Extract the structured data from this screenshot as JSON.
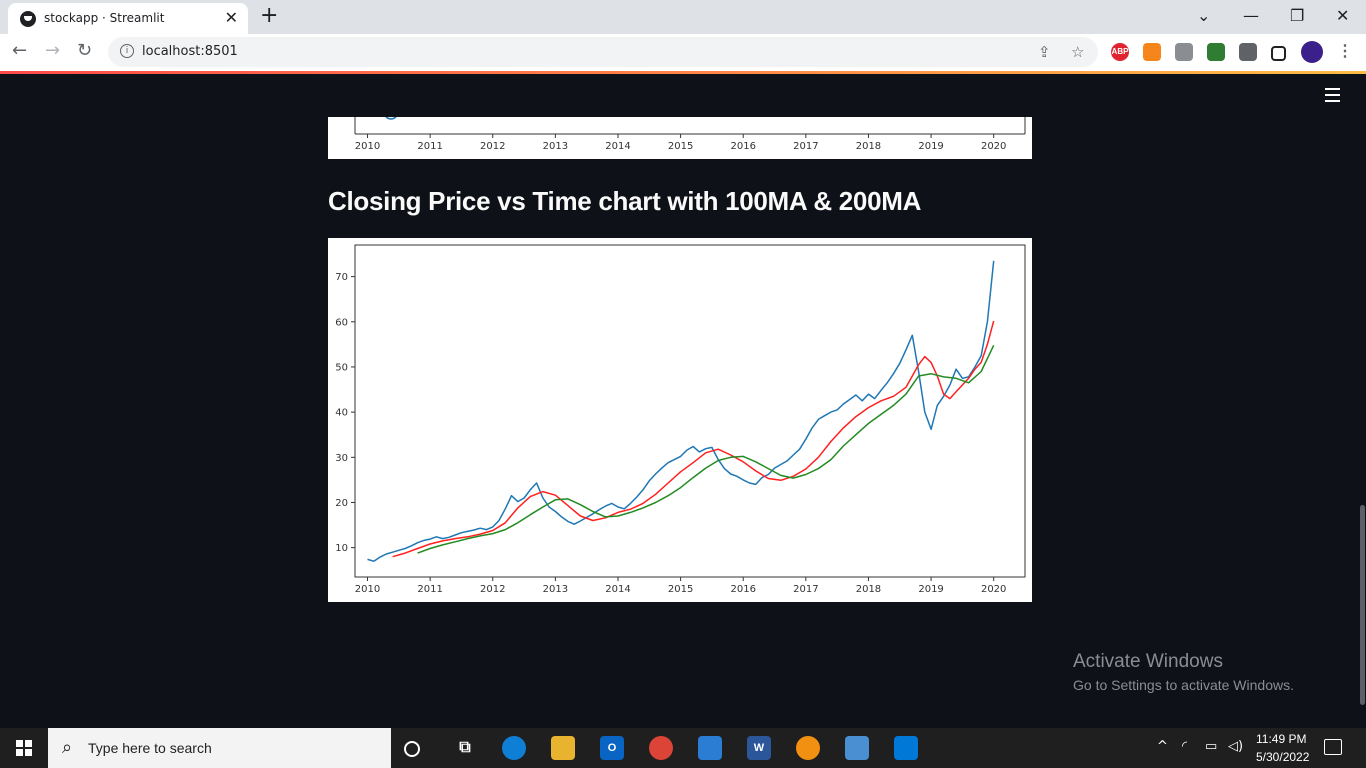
{
  "browser": {
    "tab_title": "stockapp · Streamlit",
    "tab_close": "✕",
    "new_tab": "+",
    "url": "localhost:8501",
    "win_min": "—",
    "win_restore": "❐",
    "win_close": "✕",
    "tab_search": "⌄",
    "ext_abp": "ABP"
  },
  "app": {
    "heading": "Closing Price vs Time chart with 100MA & 200MA",
    "accent": "#ff4b4b",
    "background": "#0e1117"
  },
  "top_chart_partial": {
    "xticks": [
      "2010",
      "2011",
      "2012",
      "2013",
      "2014",
      "2015",
      "2016",
      "2017",
      "2018",
      "2019",
      "2020"
    ]
  },
  "chart_data": {
    "type": "line",
    "title": "",
    "xlabel": "",
    "ylabel": "",
    "xlim": [
      2009.8,
      2020.5
    ],
    "ylim": [
      3.5,
      77
    ],
    "xticks": [
      "2010",
      "2011",
      "2012",
      "2013",
      "2014",
      "2015",
      "2016",
      "2017",
      "2018",
      "2019",
      "2020"
    ],
    "yticks": [
      "10",
      "20",
      "30",
      "40",
      "50",
      "60",
      "70"
    ],
    "grid": false,
    "legend": "none",
    "series": [
      {
        "color": "#1f77b4",
        "x": [
          2010.0,
          2010.1,
          2010.2,
          2010.3,
          2010.4,
          2010.5,
          2010.6,
          2010.7,
          2010.8,
          2010.9,
          2011.0,
          2011.1,
          2011.2,
          2011.3,
          2011.4,
          2011.5,
          2011.6,
          2011.7,
          2011.8,
          2011.9,
          2012.0,
          2012.1,
          2012.2,
          2012.3,
          2012.4,
          2012.5,
          2012.6,
          2012.7,
          2012.8,
          2012.9,
          2013.0,
          2013.1,
          2013.2,
          2013.3,
          2013.4,
          2013.5,
          2013.6,
          2013.7,
          2013.8,
          2013.9,
          2014.0,
          2014.1,
          2014.2,
          2014.3,
          2014.4,
          2014.5,
          2014.6,
          2014.7,
          2014.8,
          2014.9,
          2015.0,
          2015.1,
          2015.2,
          2015.3,
          2015.4,
          2015.5,
          2015.6,
          2015.7,
          2015.8,
          2015.9,
          2016.0,
          2016.1,
          2016.2,
          2016.3,
          2016.4,
          2016.5,
          2016.6,
          2016.7,
          2016.8,
          2016.9,
          2017.0,
          2017.1,
          2017.2,
          2017.3,
          2017.4,
          2017.5,
          2017.6,
          2017.7,
          2017.8,
          2017.9,
          2018.0,
          2018.1,
          2018.2,
          2018.3,
          2018.4,
          2018.5,
          2018.6,
          2018.7,
          2018.8,
          2018.9,
          2019.0,
          2019.1,
          2019.2,
          2019.3,
          2019.4,
          2019.5,
          2019.6,
          2019.7,
          2019.8,
          2019.9,
          2020.0
        ],
        "y": [
          7.4,
          7.0,
          7.9,
          8.6,
          9.0,
          9.4,
          9.8,
          10.4,
          11.1,
          11.6,
          11.9,
          12.4,
          12.0,
          12.3,
          12.8,
          13.3,
          13.6,
          13.9,
          14.3,
          14.0,
          14.6,
          16.0,
          18.6,
          21.5,
          20.2,
          21.0,
          22.8,
          24.3,
          21.0,
          19.0,
          18.0,
          16.8,
          15.8,
          15.2,
          15.9,
          16.7,
          17.5,
          18.4,
          19.2,
          19.8,
          19.0,
          18.6,
          19.8,
          21.2,
          22.8,
          24.8,
          26.3,
          27.6,
          28.8,
          29.5,
          30.2,
          31.6,
          32.4,
          31.2,
          31.9,
          32.2,
          29.5,
          27.5,
          26.3,
          25.8,
          25.0,
          24.3,
          24.0,
          25.5,
          26.2,
          27.6,
          28.4,
          29.2,
          30.5,
          31.8,
          34.0,
          36.5,
          38.4,
          39.2,
          40.0,
          40.5,
          41.8,
          42.8,
          43.8,
          42.5,
          44.0,
          43.0,
          44.8,
          46.5,
          48.5,
          50.8,
          53.8,
          57.0,
          49.0,
          40.0,
          36.2,
          41.5,
          43.5,
          46.0,
          49.5,
          47.5,
          47.8,
          50.0,
          52.5,
          60.0,
          73.5
        ]
      },
      {
        "color": "#ff2020",
        "x": [
          2010.4,
          2010.6,
          2010.8,
          2011.0,
          2011.2,
          2011.4,
          2011.6,
          2011.8,
          2012.0,
          2012.2,
          2012.4,
          2012.6,
          2012.8,
          2013.0,
          2013.2,
          2013.4,
          2013.6,
          2013.8,
          2014.0,
          2014.2,
          2014.4,
          2014.6,
          2014.8,
          2015.0,
          2015.2,
          2015.4,
          2015.6,
          2015.8,
          2016.0,
          2016.2,
          2016.4,
          2016.6,
          2016.8,
          2017.0,
          2017.2,
          2017.4,
          2017.6,
          2017.8,
          2018.0,
          2018.2,
          2018.4,
          2018.6,
          2018.8,
          2018.9,
          2019.0,
          2019.1,
          2019.2,
          2019.3,
          2019.4,
          2019.5,
          2019.6,
          2019.7,
          2019.8,
          2019.9,
          2020.0
        ],
        "y": [
          8.0,
          8.8,
          9.8,
          10.8,
          11.5,
          12.0,
          12.4,
          13.0,
          13.8,
          15.5,
          18.8,
          21.3,
          22.4,
          21.6,
          19.3,
          17.0,
          16.0,
          16.6,
          17.8,
          18.5,
          19.8,
          21.8,
          24.3,
          26.8,
          28.8,
          31.0,
          31.8,
          30.5,
          29.0,
          27.0,
          25.3,
          24.9,
          25.8,
          27.4,
          30.0,
          33.5,
          36.5,
          39.0,
          41.0,
          42.5,
          43.5,
          45.5,
          50.5,
          52.3,
          51.0,
          48.0,
          44.0,
          43.0,
          44.5,
          46.0,
          47.5,
          49.5,
          51.0,
          55.0,
          60.2
        ]
      },
      {
        "color": "#228b22",
        "x": [
          2010.8,
          2011.0,
          2011.2,
          2011.4,
          2011.6,
          2011.8,
          2012.0,
          2012.2,
          2012.4,
          2012.6,
          2012.8,
          2013.0,
          2013.2,
          2013.4,
          2013.6,
          2013.8,
          2014.0,
          2014.2,
          2014.4,
          2014.6,
          2014.8,
          2015.0,
          2015.2,
          2015.4,
          2015.6,
          2015.8,
          2016.0,
          2016.2,
          2016.4,
          2016.6,
          2016.8,
          2017.0,
          2017.2,
          2017.4,
          2017.6,
          2017.8,
          2018.0,
          2018.2,
          2018.4,
          2018.6,
          2018.8,
          2019.0,
          2019.2,
          2019.4,
          2019.6,
          2019.8,
          2020.0
        ],
        "y": [
          8.8,
          9.8,
          10.6,
          11.3,
          12.0,
          12.6,
          13.1,
          14.0,
          15.5,
          17.3,
          19.0,
          20.6,
          20.8,
          19.5,
          18.0,
          16.8,
          17.0,
          17.8,
          18.8,
          20.0,
          21.5,
          23.3,
          25.5,
          27.6,
          29.3,
          30.0,
          30.2,
          29.0,
          27.5,
          26.0,
          25.4,
          26.2,
          27.5,
          29.5,
          32.5,
          35.0,
          37.5,
          39.5,
          41.5,
          44.0,
          48.0,
          48.5,
          47.8,
          47.5,
          46.5,
          49.0,
          54.8
        ]
      }
    ]
  }
}
